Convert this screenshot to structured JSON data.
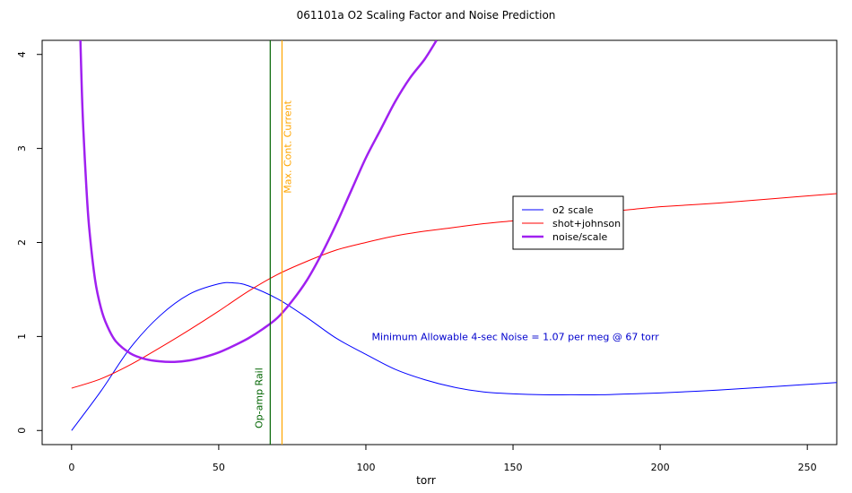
{
  "chart_data": {
    "type": "line",
    "title": "061101a   O2 Scaling Factor and Noise Prediction",
    "xlabel": "torr",
    "ylabel": "",
    "xlim": [
      -10,
      260
    ],
    "ylim": [
      -0.15,
      4.15
    ],
    "x_ticks": [
      0,
      50,
      100,
      150,
      200,
      250
    ],
    "y_ticks": [
      0,
      1,
      2,
      3,
      4
    ],
    "grid": false,
    "legend_position": "center-right",
    "series": [
      {
        "name": "o2 scale",
        "color": "#0000ff",
        "width": 1,
        "x": [
          0,
          10,
          20,
          30,
          40,
          50,
          55,
          60,
          70,
          80,
          90,
          100,
          110,
          120,
          130,
          140,
          150,
          160,
          170,
          180,
          190,
          200,
          220,
          240,
          260
        ],
        "y": [
          0,
          0.42,
          0.88,
          1.22,
          1.45,
          1.56,
          1.57,
          1.54,
          1.4,
          1.2,
          0.98,
          0.81,
          0.65,
          0.54,
          0.46,
          0.41,
          0.39,
          0.38,
          0.38,
          0.38,
          0.39,
          0.4,
          0.43,
          0.47,
          0.51
        ]
      },
      {
        "name": "shot+johnson",
        "color": "#ff0000",
        "width": 1,
        "x": [
          0,
          10,
          20,
          30,
          40,
          50,
          60,
          70,
          80,
          90,
          100,
          110,
          120,
          130,
          140,
          150,
          160,
          170,
          180,
          190,
          200,
          220,
          240,
          260
        ],
        "y": [
          0.45,
          0.55,
          0.7,
          0.88,
          1.07,
          1.27,
          1.48,
          1.66,
          1.8,
          1.92,
          2.0,
          2.07,
          2.12,
          2.16,
          2.2,
          2.23,
          2.26,
          2.29,
          2.32,
          2.35,
          2.38,
          2.42,
          2.47,
          2.52
        ]
      },
      {
        "name": "noise/scale",
        "color": "#a020f0",
        "width": 2.5,
        "x": [
          3,
          3.5,
          4,
          5,
          6,
          8,
          10,
          12,
          15,
          20,
          25,
          30,
          35,
          40,
          45,
          50,
          55,
          60,
          65,
          70,
          75,
          80,
          85,
          90,
          95,
          100,
          105,
          110,
          115,
          120,
          124
        ],
        "y": [
          4.15,
          3.6,
          3.2,
          2.6,
          2.15,
          1.6,
          1.3,
          1.12,
          0.95,
          0.82,
          0.76,
          0.735,
          0.73,
          0.745,
          0.78,
          0.83,
          0.9,
          0.98,
          1.08,
          1.2,
          1.38,
          1.6,
          1.88,
          2.2,
          2.55,
          2.9,
          3.2,
          3.5,
          3.75,
          3.95,
          4.15
        ]
      }
    ],
    "vlines": [
      {
        "x": 67.5,
        "color": "#006400",
        "label": "Op-amp Rail"
      },
      {
        "x": 71.5,
        "color": "#ffa500",
        "label": "Max. Cont. Current"
      }
    ],
    "annotation": {
      "text": "Minimum Allowable 4-sec Noise =  1.07  per meg @  67  torr",
      "x": 102,
      "y": 1.0,
      "color": "#0000cd"
    }
  }
}
